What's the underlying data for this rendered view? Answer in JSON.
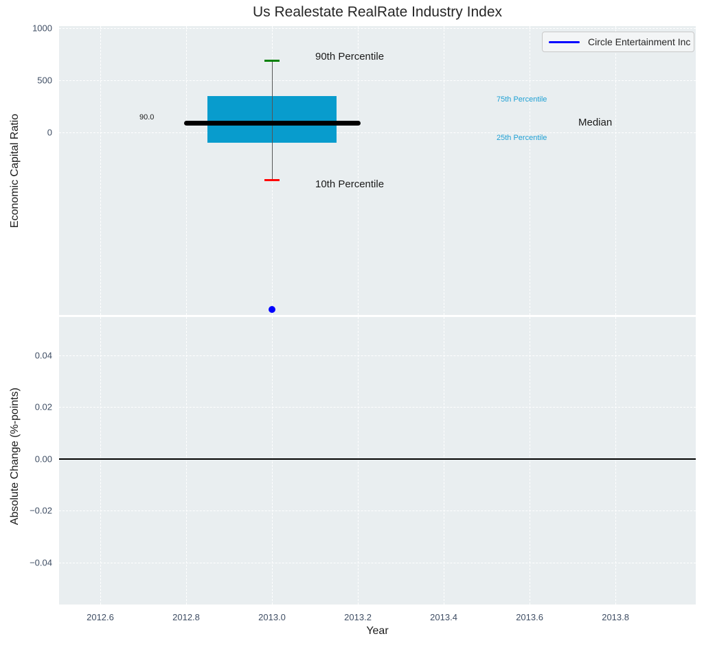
{
  "title": "Us Realestate RealRate Industry Index",
  "legend": {
    "label": "Circle Entertainment Inc",
    "line_color": "#0000ff"
  },
  "annotations": {
    "p90": "90th Percentile",
    "p75": "75th Percentile",
    "median": "Median",
    "p25": "25th Percentile",
    "p10": "10th Percentile",
    "median_value_label": "90.0"
  },
  "colors": {
    "plot_background": "#e9eef0",
    "gridline": "#ffffff",
    "box_fill": "#089ccd",
    "median_line": "#000000",
    "whisker": "#555555",
    "cap_90th": "#008000",
    "cap_10th": "#ff0000",
    "company_point": "#0000ff",
    "zero_line": "#000000",
    "tick_label": "#3e4d63",
    "cyan_label": "#1fa0d4"
  },
  "chart_data": [
    {
      "type": "box",
      "title": "Us Realestate RealRate Industry Index",
      "ylabel": "Economic Capital Ratio",
      "xlabel": "Year",
      "grid": true,
      "legend_position": "upper right",
      "legend_entries": [
        "Circle Entertainment Inc"
      ],
      "xlim": [
        2012.504,
        2013.987
      ],
      "ylim": [
        -1750,
        1020
      ],
      "yticks": [
        {
          "v": 0,
          "label": "0"
        },
        {
          "v": 500,
          "label": "500"
        },
        {
          "v": 1000,
          "label": "1000"
        }
      ],
      "box": {
        "x_center": 2013.0,
        "p10": -460,
        "p25": -100,
        "median": 90.0,
        "p75": 350,
        "p90": 685,
        "box_x_range": [
          2012.85,
          2013.15
        ],
        "median_x_range": [
          2012.8,
          2013.2
        ]
      },
      "series": [
        {
          "name": "Circle Entertainment Inc",
          "type": "scatter",
          "color": "#0000ff",
          "points": [
            {
              "x": 2013.0,
              "y": -1700
            }
          ]
        }
      ]
    },
    {
      "type": "line",
      "ylabel": "Absolute Change (%-points)",
      "xlabel": "Year",
      "grid": true,
      "zero_line": true,
      "xlim": [
        2012.504,
        2013.987
      ],
      "ylim": [
        -0.0562,
        0.0548
      ],
      "yticks": [
        {
          "v": 0.04,
          "label": "0.04"
        },
        {
          "v": 0.02,
          "label": "0.02"
        },
        {
          "v": 0.0,
          "label": "0.00"
        },
        {
          "v": -0.02,
          "label": "−0.02"
        },
        {
          "v": -0.04,
          "label": "−0.04"
        }
      ],
      "xticks": [
        {
          "v": 2012.6,
          "label": "2012.6"
        },
        {
          "v": 2012.8,
          "label": "2012.8"
        },
        {
          "v": 2013.0,
          "label": "2013.0"
        },
        {
          "v": 2013.2,
          "label": "2013.2"
        },
        {
          "v": 2013.4,
          "label": "2013.4"
        },
        {
          "v": 2013.6,
          "label": "2013.6"
        },
        {
          "v": 2013.8,
          "label": "2013.8"
        }
      ],
      "series": []
    }
  ]
}
